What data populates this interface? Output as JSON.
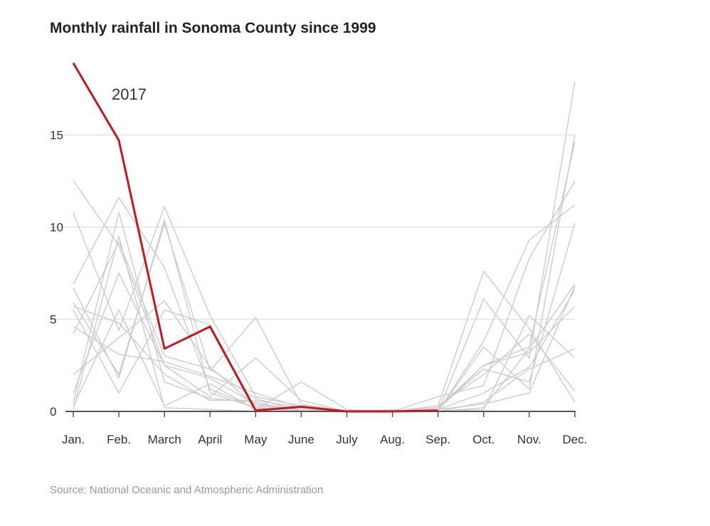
{
  "title": "Monthly rainfall in Sonoma County since 1999",
  "source": "Source: National Oceanic and Atmospheric Administration",
  "colors": {
    "highlight": "#c8161d",
    "background_lines": "#cccccc",
    "grid": "#e3e3e3",
    "baseline": "#555555"
  },
  "chart_data": {
    "type": "line",
    "title": "Monthly rainfall in Sonoma County since 1999",
    "xlabel": "",
    "ylabel": "",
    "categories": [
      "Jan.",
      "Feb.",
      "March",
      "April",
      "May",
      "June",
      "July",
      "Aug.",
      "Sep.",
      "Oct.",
      "Nov.",
      "Dec."
    ],
    "ylim": [
      0,
      19
    ],
    "yticks": [
      0,
      5,
      10,
      15
    ],
    "grid": true,
    "highlight": {
      "name": "2017",
      "values": [
        18.9,
        14.7,
        3.4,
        4.6,
        0.05,
        0.25,
        0.0,
        0.0,
        0.05,
        null,
        null,
        null
      ]
    },
    "series": [
      {
        "values": [
          12.5,
          9.0,
          2.5,
          1.8,
          0.4,
          0.1,
          0.0,
          0.0,
          0.2,
          2.5,
          3.5,
          14.6
        ]
      },
      {
        "values": [
          10.8,
          4.4,
          11.1,
          5.2,
          0.8,
          0.3,
          0.0,
          0.0,
          0.3,
          7.6,
          4.5,
          0.5
        ]
      },
      {
        "values": [
          6.9,
          11.6,
          7.8,
          1.2,
          0.2,
          0.0,
          0.0,
          0.1,
          0.0,
          3.8,
          9.3,
          11.2
        ]
      },
      {
        "values": [
          5.9,
          2.0,
          10.2,
          2.2,
          5.1,
          0.4,
          0.0,
          0.0,
          0.0,
          6.1,
          2.9,
          17.9
        ]
      },
      {
        "values": [
          5.5,
          1.0,
          5.5,
          4.7,
          0.1,
          1.6,
          0.1,
          0.0,
          0.8,
          1.4,
          8.3,
          12.5
        ]
      },
      {
        "values": [
          4.2,
          9.2,
          3.0,
          2.3,
          0.7,
          0.0,
          0.0,
          0.0,
          0.1,
          0.4,
          1.0,
          6.8
        ]
      },
      {
        "values": [
          2.0,
          4.0,
          6.0,
          2.4,
          0.3,
          0.1,
          0.0,
          0.0,
          0.1,
          2.5,
          3.2,
          5.7
        ]
      },
      {
        "values": [
          1.0,
          7.5,
          2.5,
          0.8,
          2.9,
          0.6,
          0.0,
          0.0,
          0.0,
          3.5,
          1.2,
          15.0
        ]
      },
      {
        "values": [
          0.5,
          10.8,
          1.6,
          0.7,
          0.5,
          0.0,
          0.0,
          0.0,
          0.1,
          1.0,
          2.4,
          6.6
        ]
      },
      {
        "values": [
          0.3,
          5.5,
          0.3,
          1.5,
          0.1,
          0.3,
          0.0,
          0.0,
          0.0,
          0.1,
          5.2,
          2.9
        ]
      },
      {
        "values": [
          5.7,
          4.8,
          2.0,
          0.6,
          0.6,
          0.2,
          0.0,
          0.0,
          0.2,
          2.3,
          1.6,
          10.2
        ]
      },
      {
        "values": [
          0.1,
          9.5,
          0.2,
          0.1,
          0.0,
          0.0,
          0.0,
          0.0,
          0.0,
          0.2,
          3.4,
          6.9
        ]
      },
      {
        "values": [
          6.7,
          1.8,
          10.4,
          1.0,
          0.2,
          0.1,
          0.0,
          0.0,
          0.0,
          0.5,
          2.3,
          3.4
        ]
      },
      {
        "values": [
          4.6,
          3.1,
          2.7,
          1.9,
          1.0,
          0.2,
          0.0,
          0.0,
          0.3,
          2.0,
          4.2,
          1.1
        ]
      }
    ]
  }
}
